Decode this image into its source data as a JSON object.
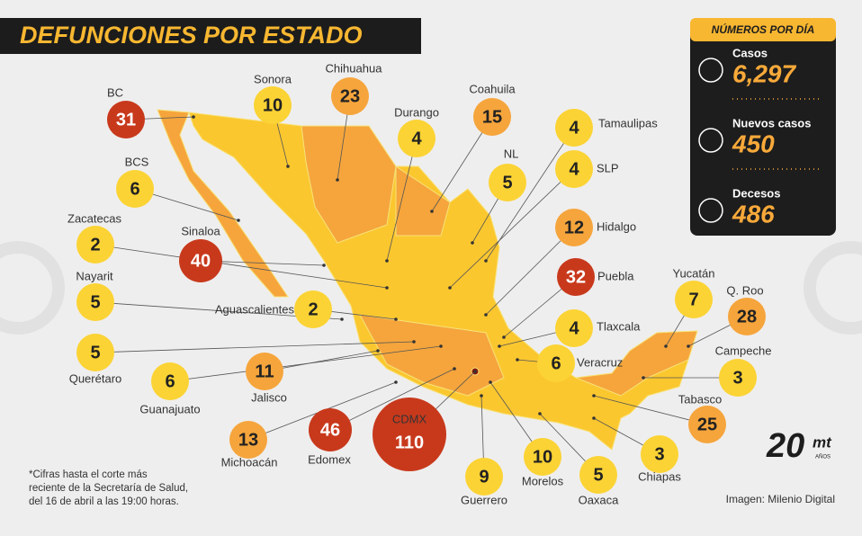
{
  "header": {
    "title": "DEFUNCIONES POR ESTADO"
  },
  "states": [
    {
      "name": "BC",
      "value": 31,
      "color": "#c8391c"
    },
    {
      "name": "Sonora",
      "value": 10,
      "color": "#fbd334"
    },
    {
      "name": "Chihuahua",
      "value": 23,
      "color": "#f5a53c"
    },
    {
      "name": "Durango",
      "value": 4,
      "color": "#fbd334"
    },
    {
      "name": "Coahuila",
      "value": 15,
      "color": "#f5a53c"
    },
    {
      "name": "Tamaulipas",
      "value": 4,
      "color": "#fbd334"
    },
    {
      "name": "NL",
      "value": 5,
      "color": "#fbd334"
    },
    {
      "name": "SLP",
      "value": 4,
      "color": "#fbd334"
    },
    {
      "name": "BCS",
      "value": 6,
      "color": "#fbd334"
    },
    {
      "name": "Hidalgo",
      "value": 12,
      "color": "#f5a53c"
    },
    {
      "name": "Zacatecas",
      "value": 2,
      "color": "#fbd334"
    },
    {
      "name": "Sinaloa",
      "value": 40,
      "color": "#c8391c"
    },
    {
      "name": "Puebla",
      "value": 32,
      "color": "#c8391c"
    },
    {
      "name": "Nayarit",
      "value": 5,
      "color": "#fbd334"
    },
    {
      "name": "Aguascalientes",
      "value": 2,
      "color": "#fbd334"
    },
    {
      "name": "Yucatán",
      "value": 7,
      "color": "#fbd334"
    },
    {
      "name": "Q. Roo",
      "value": 28,
      "color": "#f5a53c"
    },
    {
      "name": "Tlaxcala",
      "value": 4,
      "color": "#fbd334"
    },
    {
      "name": "Querétaro",
      "value": 5,
      "color": "#fbd334"
    },
    {
      "name": "Campeche",
      "value": 3,
      "color": "#fbd334"
    },
    {
      "name": "Veracruz",
      "value": 6,
      "color": "#fbd334"
    },
    {
      "name": "Guanajuato",
      "value": 6,
      "color": "#fbd334"
    },
    {
      "name": "Jalisco",
      "value": 11,
      "color": "#f5a53c"
    },
    {
      "name": "Tabasco",
      "value": 25,
      "color": "#f5a53c"
    },
    {
      "name": "Michoacán",
      "value": 13,
      "color": "#f5a53c"
    },
    {
      "name": "Edomex",
      "value": 46,
      "color": "#c8391c"
    },
    {
      "name": "CDMX",
      "value": 110,
      "color": "#c8391c"
    },
    {
      "name": "Guerrero",
      "value": 9,
      "color": "#fbd334"
    },
    {
      "name": "Morelos",
      "value": 10,
      "color": "#fbd334"
    },
    {
      "name": "Chiapas",
      "value": 3,
      "color": "#fbd334"
    },
    {
      "name": "Oaxaca",
      "value": 5,
      "color": "#fbd334"
    }
  ],
  "panel": {
    "title": "NÚMEROS POR DÍA",
    "items": [
      {
        "label": "Casos",
        "value": 6297,
        "value_label": "6,297"
      },
      {
        "label": "Nuevos casos",
        "value": 450
      },
      {
        "label": "Decesos",
        "value": 486
      }
    ]
  },
  "footnote": [
    "*Cifras hasta el corte más",
    "reciente de la Secretaría de Salud,",
    "del 16 de abril a las 19:00 horas."
  ],
  "credit": "Imagen: Milenio Digital",
  "logo": {
    "number": "20",
    "brand": "mt",
    "sub": "AÑOS"
  }
}
